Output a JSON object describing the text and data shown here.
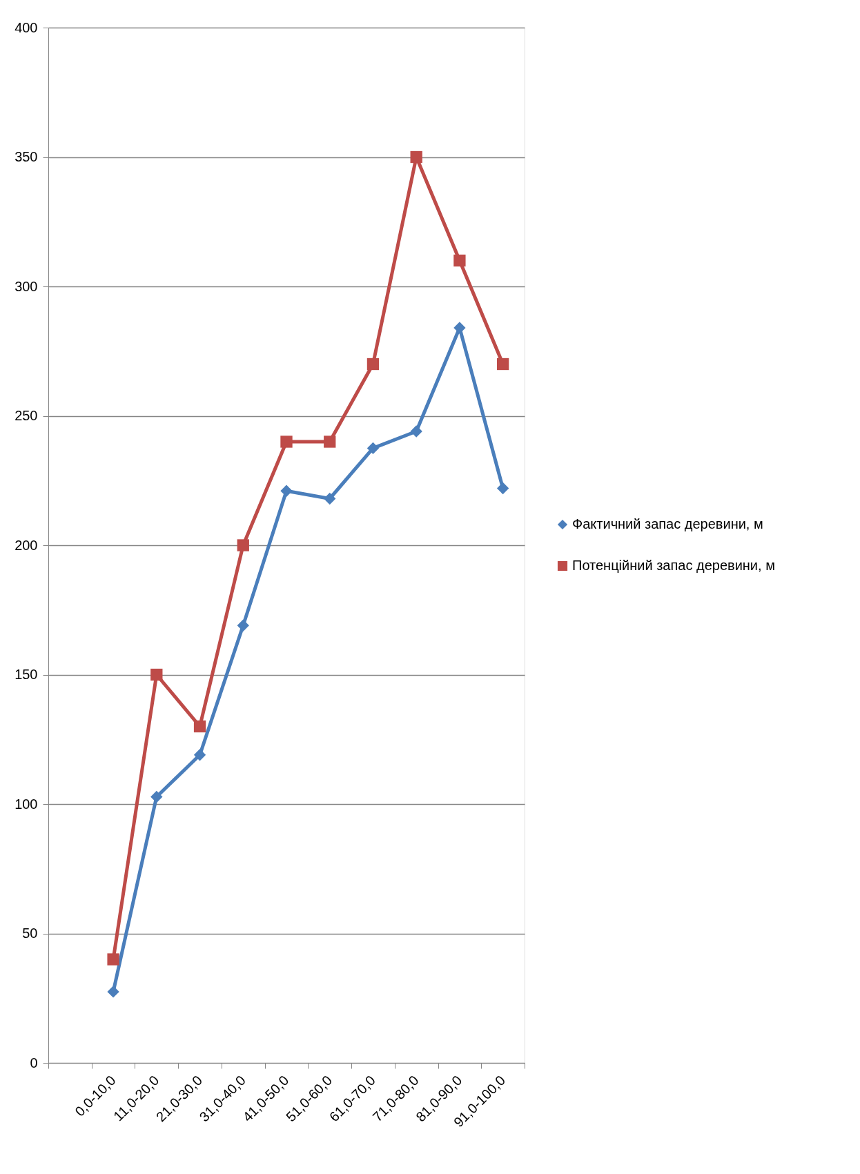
{
  "chart_data": {
    "type": "line",
    "categories": [
      null,
      "0,0-10,0",
      "11,0-20,0",
      "21,0-30,0",
      "31,0-40,0",
      "41,0-50,0",
      "51,0-60,0",
      "61,0-70,0",
      "71,0-80,0",
      "81,0-90,0",
      "91,0-100,0"
    ],
    "series": [
      {
        "name": "Фактичний запас деревини, м",
        "color": "#4a7ebb",
        "marker": "diamond",
        "values": [
          null,
          27.5,
          102.8,
          119,
          169,
          221,
          218,
          237.5,
          244,
          284,
          222
        ]
      },
      {
        "name": "Потенційний запас деревини, м",
        "color": "#be4b48",
        "marker": "square",
        "values": [
          null,
          40,
          150,
          130,
          200,
          240,
          240,
          270,
          350,
          310,
          270
        ]
      }
    ],
    "ylim": [
      0,
      400
    ],
    "yticks": [
      0,
      50,
      100,
      150,
      200,
      250,
      300,
      350,
      400
    ],
    "grid": "y",
    "legend": "right",
    "line_style": "solid"
  }
}
